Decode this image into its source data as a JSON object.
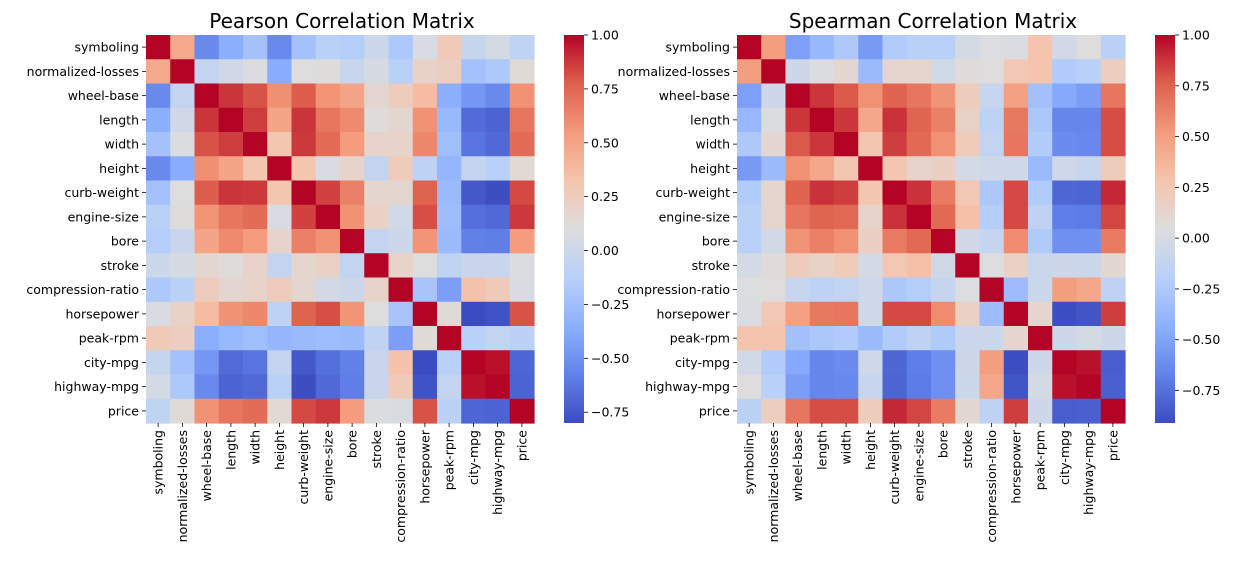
{
  "chart_data": [
    {
      "type": "heatmap",
      "title": "Pearson Correlation Matrix",
      "labels": [
        "symboling",
        "normalized-losses",
        "wheel-base",
        "length",
        "width",
        "height",
        "curb-weight",
        "engine-size",
        "bore",
        "stroke",
        "compression-ratio",
        "horsepower",
        "peak-rpm",
        "city-mpg",
        "highway-mpg",
        "price"
      ],
      "values": [
        [
          1.0,
          0.47,
          -0.54,
          -0.36,
          -0.23,
          -0.54,
          -0.23,
          -0.11,
          -0.14,
          -0.01,
          -0.18,
          0.07,
          0.27,
          -0.04,
          0.04,
          -0.08
        ],
        [
          0.47,
          1.0,
          -0.06,
          0.02,
          0.08,
          -0.37,
          0.1,
          0.11,
          -0.03,
          0.06,
          -0.11,
          0.2,
          0.24,
          -0.23,
          -0.18,
          0.13
        ],
        [
          -0.54,
          -0.06,
          1.0,
          0.88,
          0.81,
          0.59,
          0.78,
          0.57,
          0.49,
          0.16,
          0.25,
          0.37,
          -0.36,
          -0.47,
          -0.54,
          0.58
        ],
        [
          -0.36,
          0.02,
          0.88,
          1.0,
          0.86,
          0.49,
          0.88,
          0.69,
          0.61,
          0.12,
          0.16,
          0.58,
          -0.29,
          -0.67,
          -0.7,
          0.69
        ],
        [
          -0.23,
          0.08,
          0.81,
          0.86,
          1.0,
          0.31,
          0.87,
          0.73,
          0.54,
          0.19,
          0.19,
          0.62,
          -0.25,
          -0.63,
          -0.68,
          0.73
        ],
        [
          -0.54,
          -0.37,
          0.59,
          0.49,
          0.31,
          1.0,
          0.31,
          0.07,
          0.18,
          -0.06,
          0.26,
          -0.09,
          -0.31,
          -0.05,
          -0.11,
          0.14
        ],
        [
          -0.23,
          0.1,
          0.78,
          0.88,
          0.87,
          0.31,
          1.0,
          0.85,
          0.65,
          0.17,
          0.16,
          0.76,
          -0.28,
          -0.75,
          -0.79,
          0.83
        ],
        [
          -0.11,
          0.11,
          0.57,
          0.69,
          0.73,
          0.07,
          0.85,
          1.0,
          0.58,
          0.21,
          0.03,
          0.82,
          -0.26,
          -0.65,
          -0.68,
          0.87
        ],
        [
          -0.14,
          -0.03,
          0.49,
          0.61,
          0.54,
          0.18,
          0.65,
          0.58,
          1.0,
          -0.06,
          0.0,
          0.57,
          -0.27,
          -0.58,
          -0.59,
          0.54
        ],
        [
          -0.01,
          0.06,
          0.16,
          0.12,
          0.19,
          -0.06,
          0.17,
          0.21,
          -0.06,
          1.0,
          0.19,
          0.1,
          -0.07,
          -0.03,
          -0.03,
          0.08
        ],
        [
          -0.18,
          -0.11,
          0.25,
          0.16,
          0.19,
          0.26,
          0.16,
          0.03,
          0.0,
          0.19,
          1.0,
          -0.21,
          -0.44,
          0.33,
          0.27,
          0.07
        ],
        [
          0.07,
          0.2,
          0.37,
          0.58,
          0.62,
          -0.09,
          0.76,
          0.82,
          0.57,
          0.1,
          -0.21,
          1.0,
          0.13,
          -0.8,
          -0.77,
          0.81
        ],
        [
          0.27,
          0.24,
          -0.36,
          -0.29,
          -0.25,
          -0.31,
          -0.28,
          -0.26,
          -0.27,
          -0.07,
          -0.44,
          0.13,
          1.0,
          -0.12,
          -0.06,
          -0.1
        ],
        [
          -0.04,
          -0.23,
          -0.47,
          -0.67,
          -0.63,
          -0.05,
          -0.75,
          -0.65,
          -0.58,
          -0.03,
          0.33,
          -0.8,
          -0.12,
          1.0,
          0.97,
          -0.69
        ],
        [
          0.04,
          -0.18,
          -0.54,
          -0.7,
          -0.68,
          -0.11,
          -0.79,
          -0.68,
          -0.59,
          -0.03,
          0.27,
          -0.77,
          -0.06,
          0.97,
          1.0,
          -0.7
        ],
        [
          -0.08,
          0.13,
          0.58,
          0.69,
          0.73,
          0.14,
          0.83,
          0.87,
          0.54,
          0.08,
          0.07,
          0.81,
          -0.1,
          -0.69,
          -0.7,
          1.0
        ]
      ],
      "colormap": "coolwarm",
      "vmin": -0.8,
      "vmax": 1.0,
      "colorbar_ticks": [
        1.0,
        0.75,
        0.5,
        0.25,
        0.0,
        -0.25,
        -0.5,
        -0.75
      ],
      "colorbar_labels": [
        "1.00",
        "0.75",
        "0.50",
        "0.25",
        "0.00",
        "−0.25",
        "−0.50",
        "−0.75"
      ]
    },
    {
      "type": "heatmap",
      "title": "Spearman Correlation Matrix",
      "labels": [
        "symboling",
        "normalized-losses",
        "wheel-base",
        "length",
        "width",
        "height",
        "curb-weight",
        "engine-size",
        "bore",
        "stroke",
        "compression-ratio",
        "horsepower",
        "peak-rpm",
        "city-mpg",
        "highway-mpg",
        "price"
      ],
      "values": [
        [
          1.0,
          0.5,
          -0.52,
          -0.37,
          -0.25,
          -0.55,
          -0.23,
          -0.18,
          -0.19,
          -0.01,
          0.04,
          0.02,
          0.28,
          -0.03,
          0.05,
          -0.17
        ],
        [
          0.5,
          1.0,
          -0.06,
          0.03,
          0.11,
          -0.35,
          0.12,
          0.12,
          -0.03,
          0.07,
          0.05,
          0.25,
          0.28,
          -0.23,
          -0.19,
          0.19
        ],
        [
          -0.52,
          -0.06,
          1.0,
          0.87,
          0.78,
          0.56,
          0.75,
          0.67,
          0.55,
          0.21,
          -0.1,
          0.49,
          -0.31,
          -0.47,
          -0.53,
          0.67
        ],
        [
          -0.37,
          0.03,
          0.87,
          1.0,
          0.87,
          0.45,
          0.88,
          0.74,
          0.63,
          0.15,
          -0.16,
          0.66,
          -0.26,
          -0.65,
          -0.65,
          0.81
        ],
        [
          -0.25,
          0.11,
          0.78,
          0.87,
          1.0,
          0.26,
          0.85,
          0.72,
          0.56,
          0.22,
          -0.12,
          0.67,
          -0.23,
          -0.62,
          -0.64,
          0.81
        ],
        [
          -0.55,
          -0.35,
          0.56,
          0.45,
          0.26,
          1.0,
          0.26,
          0.14,
          0.18,
          -0.02,
          -0.05,
          -0.05,
          -0.36,
          -0.05,
          -0.1,
          0.21
        ],
        [
          -0.23,
          0.12,
          0.75,
          0.88,
          0.85,
          0.26,
          1.0,
          0.88,
          0.65,
          0.25,
          -0.26,
          0.82,
          -0.23,
          -0.79,
          -0.8,
          0.91
        ],
        [
          -0.18,
          0.12,
          0.67,
          0.74,
          0.72,
          0.14,
          0.88,
          1.0,
          0.72,
          0.31,
          -0.21,
          0.82,
          -0.15,
          -0.69,
          -0.7,
          0.83
        ],
        [
          -0.19,
          -0.03,
          0.55,
          0.63,
          0.56,
          0.18,
          0.65,
          0.72,
          1.0,
          -0.04,
          -0.11,
          0.58,
          -0.24,
          -0.6,
          -0.6,
          0.65
        ],
        [
          -0.01,
          0.07,
          0.21,
          0.15,
          0.22,
          -0.02,
          0.25,
          0.31,
          -0.04,
          1.0,
          0.04,
          0.16,
          -0.08,
          -0.06,
          -0.07,
          0.1
        ],
        [
          0.04,
          0.05,
          -0.1,
          -0.16,
          -0.12,
          -0.05,
          -0.26,
          -0.21,
          -0.11,
          0.04,
          1.0,
          -0.34,
          -0.07,
          0.5,
          0.45,
          -0.15
        ],
        [
          0.02,
          0.25,
          0.49,
          0.66,
          0.67,
          -0.05,
          0.82,
          0.82,
          0.58,
          0.16,
          -0.34,
          1.0,
          0.12,
          -0.9,
          -0.87,
          0.85
        ],
        [
          0.28,
          0.28,
          -0.31,
          -0.26,
          -0.23,
          -0.36,
          -0.23,
          -0.15,
          -0.24,
          -0.08,
          -0.07,
          0.12,
          1.0,
          -0.06,
          -0.01,
          -0.06
        ],
        [
          -0.03,
          -0.23,
          -0.47,
          -0.65,
          -0.62,
          -0.05,
          -0.79,
          -0.69,
          -0.6,
          -0.06,
          0.5,
          -0.9,
          -0.06,
          1.0,
          0.97,
          -0.83
        ],
        [
          0.05,
          -0.19,
          -0.53,
          -0.65,
          -0.64,
          -0.1,
          -0.8,
          -0.7,
          -0.6,
          -0.07,
          0.45,
          -0.87,
          -0.01,
          0.97,
          1.0,
          -0.82
        ],
        [
          -0.17,
          0.19,
          0.67,
          0.81,
          0.81,
          0.21,
          0.91,
          0.83,
          0.65,
          0.1,
          -0.15,
          0.85,
          -0.06,
          -0.83,
          -0.82,
          1.0
        ]
      ],
      "colormap": "coolwarm",
      "vmin": -0.91,
      "vmax": 1.0,
      "colorbar_ticks": [
        1.0,
        0.75,
        0.5,
        0.25,
        0.0,
        -0.25,
        -0.5,
        -0.75
      ],
      "colorbar_labels": [
        "1.00",
        "0.75",
        "0.50",
        "0.25",
        "0.00",
        "−0.25",
        "−0.50",
        "−0.75"
      ]
    }
  ]
}
